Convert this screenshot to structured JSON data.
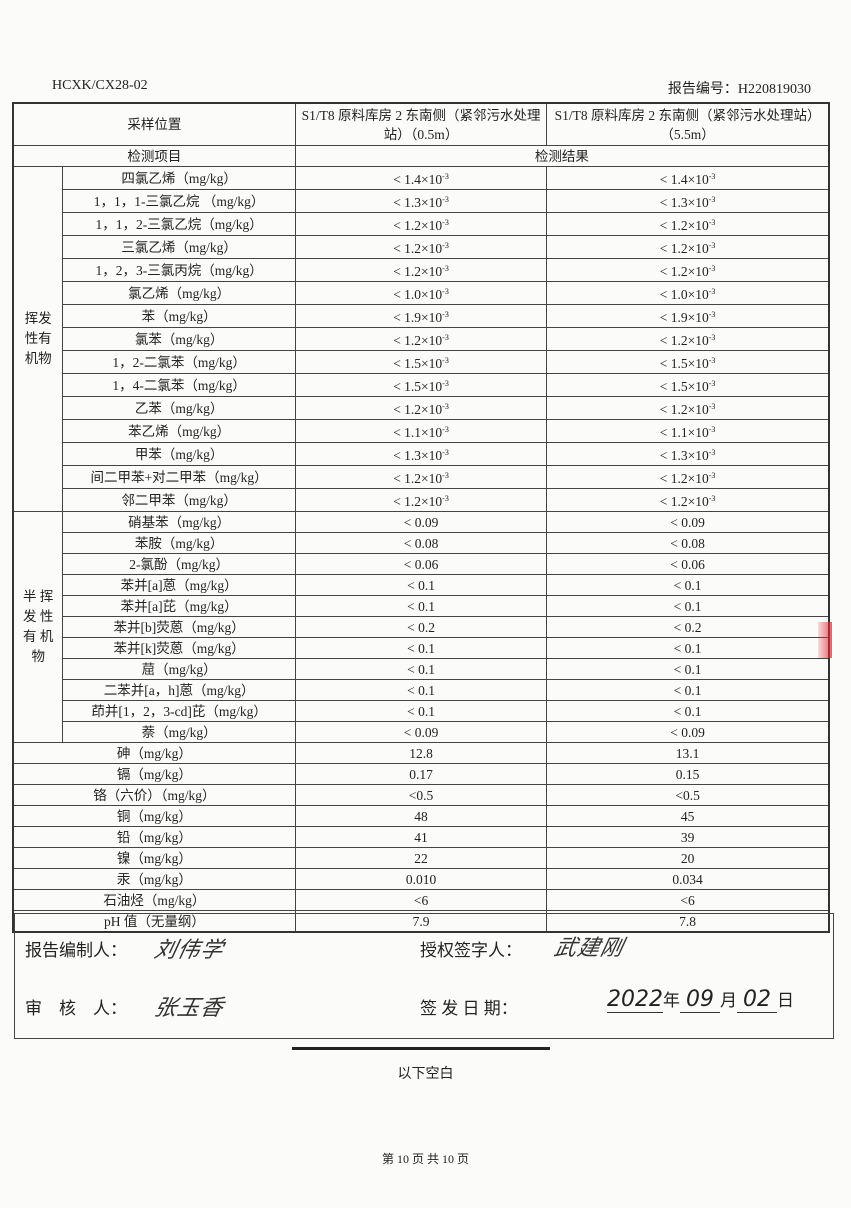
{
  "header": {
    "doc_code": "HCXK/CX28-02",
    "report_no": "报告编号：H220819030"
  },
  "table": {
    "sampling_location_label": "采样位置",
    "locations": [
      "S1/T8 原料库房 2 东南侧（紧邻污水处理站）（0.5m）",
      "S1/T8 原料库房 2 东南侧（紧邻污水处理站）（5.5m）"
    ],
    "item_label": "检测项目",
    "result_label": "检测结果",
    "groups": [
      {
        "name_lines": [
          "挥发",
          "性有",
          "机物"
        ],
        "rows": [
          {
            "item": "四氯乙烯（mg/kg）",
            "v1": "< 1.4×10^-3",
            "v2": "< 1.4×10^-3"
          },
          {
            "item": "1，1，1-三氯乙烷 （mg/kg）",
            "v1": "< 1.3×10^-3",
            "v2": "< 1.3×10^-3"
          },
          {
            "item": "1，1，2-三氯乙烷（mg/kg）",
            "v1": "< 1.2×10^-3",
            "v2": "< 1.2×10^-3"
          },
          {
            "item": "三氯乙烯（mg/kg）",
            "v1": "< 1.2×10^-3",
            "v2": "< 1.2×10^-3"
          },
          {
            "item": "1，2，3-三氯丙烷（mg/kg）",
            "v1": "< 1.2×10^-3",
            "v2": "< 1.2×10^-3"
          },
          {
            "item": "氯乙烯（mg/kg）",
            "v1": "< 1.0×10^-3",
            "v2": "< 1.0×10^-3"
          },
          {
            "item": "苯（mg/kg）",
            "v1": "< 1.9×10^-3",
            "v2": "< 1.9×10^-3"
          },
          {
            "item": "氯苯（mg/kg）",
            "v1": "< 1.2×10^-3",
            "v2": "< 1.2×10^-3"
          },
          {
            "item": "1，2-二氯苯（mg/kg）",
            "v1": "< 1.5×10^-3",
            "v2": "< 1.5×10^-3"
          },
          {
            "item": "1，4-二氯苯（mg/kg）",
            "v1": "< 1.5×10^-3",
            "v2": "< 1.5×10^-3"
          },
          {
            "item": "乙苯（mg/kg）",
            "v1": "< 1.2×10^-3",
            "v2": "< 1.2×10^-3"
          },
          {
            "item": "苯乙烯（mg/kg）",
            "v1": "< 1.1×10^-3",
            "v2": "< 1.1×10^-3"
          },
          {
            "item": "甲苯（mg/kg）",
            "v1": "< 1.3×10^-3",
            "v2": "< 1.3×10^-3"
          },
          {
            "item": "间二甲苯+对二甲苯（mg/kg）",
            "v1": "< 1.2×10^-3",
            "v2": "< 1.2×10^-3"
          },
          {
            "item": "邻二甲苯（mg/kg）",
            "v1": "< 1.2×10^-3",
            "v2": "< 1.2×10^-3"
          }
        ]
      },
      {
        "name_lines": [
          "半 挥",
          "发 性",
          "有 机",
          "物"
        ],
        "rows": [
          {
            "item": "硝基苯（mg/kg）",
            "v1": "< 0.09",
            "v2": "< 0.09"
          },
          {
            "item": "苯胺（mg/kg）",
            "v1": "< 0.08",
            "v2": "< 0.08"
          },
          {
            "item": "2-氯酚（mg/kg）",
            "v1": "< 0.06",
            "v2": "< 0.06"
          },
          {
            "item": "苯并[a]蒽（mg/kg）",
            "v1": "< 0.1",
            "v2": "< 0.1"
          },
          {
            "item": "苯并[a]芘（mg/kg）",
            "v1": "< 0.1",
            "v2": "< 0.1"
          },
          {
            "item": "苯并[b]荧蒽（mg/kg）",
            "v1": "< 0.2",
            "v2": "< 0.2"
          },
          {
            "item": "苯并[k]荧蒽（mg/kg）",
            "v1": "< 0.1",
            "v2": "< 0.1"
          },
          {
            "item": "䓛（mg/kg）",
            "v1": "< 0.1",
            "v2": "< 0.1"
          },
          {
            "item": "二苯并[a，h]蒽（mg/kg）",
            "v1": "< 0.1",
            "v2": "< 0.1"
          },
          {
            "item": "茚并[1，2，3-cd]芘（mg/kg）",
            "v1": "< 0.1",
            "v2": "< 0.1"
          },
          {
            "item": "萘（mg/kg）",
            "v1": "< 0.09",
            "v2": "< 0.09"
          }
        ]
      }
    ],
    "other_rows": [
      {
        "item": "砷（mg/kg）",
        "v1": "12.8",
        "v2": "13.1"
      },
      {
        "item": "镉（mg/kg）",
        "v1": "0.17",
        "v2": "0.15"
      },
      {
        "item": "铬（六价）（mg/kg）",
        "v1": "<0.5",
        "v2": "<0.5"
      },
      {
        "item": "铜（mg/kg）",
        "v1": "48",
        "v2": "45"
      },
      {
        "item": "铅（mg/kg）",
        "v1": "41",
        "v2": "39"
      },
      {
        "item": "镍（mg/kg）",
        "v1": "22",
        "v2": "20"
      },
      {
        "item": "汞（mg/kg）",
        "v1": "0.010",
        "v2": "0.034"
      },
      {
        "item": "石油烃（mg/kg）",
        "v1": "<6",
        "v2": "<6"
      },
      {
        "item": "pH 值（无量纲）",
        "v1": "7.9",
        "v2": "7.8"
      }
    ]
  },
  "signatures": {
    "compiler_label": "报告编制人：",
    "reviewer_label": "审　核　人：",
    "authorized_label": "授权签字人：",
    "issue_date_label": "签 发 日 期：",
    "date": {
      "year": "2022",
      "year_unit": "年",
      "month": "09",
      "month_unit": "月",
      "day": "02",
      "day_unit": "日"
    }
  },
  "blank_note": "以下空白",
  "footer": "第 10 页 共 10 页",
  "colors": {
    "stamp": "#e02830",
    "ink": "#222222"
  }
}
